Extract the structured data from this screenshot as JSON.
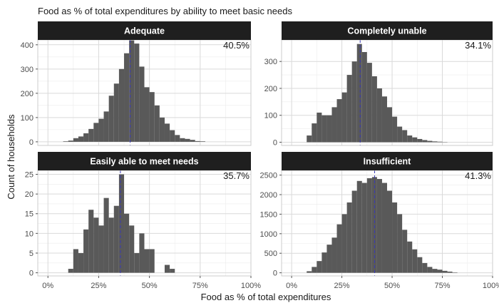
{
  "chart_data": {
    "type": "histogram",
    "title": "Food as % of total expenditures by ability to meet basic needs",
    "xlabel": "Food as % of total expenditures",
    "ylabel": "Count of households",
    "x_ticks": [
      "0%",
      "25%",
      "50%",
      "75%",
      "100%"
    ],
    "x_tick_values": [
      0,
      25,
      50,
      75,
      100
    ],
    "xlim": [
      -5,
      100
    ],
    "bin_width": 2.5,
    "bin_start": 5,
    "grid": true,
    "colors": {
      "bar": "#595959",
      "mean_line": "#3a3ab5",
      "strip": "#1f1f1f",
      "strip_text": "#ffffff",
      "grid": "#d9d9d9"
    },
    "panels": [
      {
        "label": "Adequate",
        "mean": 40.5,
        "mean_label": "40.5%",
        "ylim": [
          -15,
          420
        ],
        "y_ticks": [
          "0",
          "100",
          "200",
          "300",
          "400"
        ],
        "y_tick_values": [
          0,
          100,
          200,
          300,
          400
        ],
        "values": [
          0,
          2,
          5,
          15,
          22,
          35,
          53,
          78,
          95,
          125,
          190,
          240,
          300,
          365,
          418,
          405,
          310,
          225,
          205,
          150,
          100,
          75,
          48,
          28,
          15,
          12,
          8,
          3,
          2,
          0,
          0,
          0,
          0,
          0
        ]
      },
      {
        "label": "Completely unable",
        "mean": 34.1,
        "mean_label": "34.1%",
        "ylim": [
          -12,
          380
        ],
        "y_ticks": [
          "0",
          "100",
          "200",
          "300"
        ],
        "y_tick_values": [
          0,
          100,
          200,
          300
        ],
        "values": [
          0,
          25,
          70,
          110,
          100,
          100,
          130,
          160,
          185,
          250,
          300,
          365,
          335,
          295,
          245,
          200,
          170,
          130,
          95,
          58,
          45,
          25,
          18,
          12,
          8,
          5,
          3,
          2,
          1,
          0,
          0,
          0,
          0,
          0
        ]
      },
      {
        "label": "Easily able to meet needs",
        "mean": 35.7,
        "mean_label": "35.7%",
        "ylim": [
          -0.8,
          26
        ],
        "y_ticks": [
          "0",
          "5",
          "10",
          "15",
          "20",
          "25"
        ],
        "y_tick_values": [
          0,
          5,
          10,
          15,
          20,
          25
        ],
        "values": [
          0,
          0,
          1,
          6,
          5,
          11,
          16,
          14,
          12,
          19,
          14,
          17,
          25,
          15,
          12,
          5,
          10,
          6,
          6,
          0,
          0,
          2,
          1,
          0,
          0,
          0,
          0,
          0,
          0,
          0,
          0,
          0,
          0,
          0
        ]
      },
      {
        "label": "Insufficient",
        "mean": 41.3,
        "mean_label": "41.3%",
        "ylim": [
          -80,
          2620
        ],
        "y_ticks": [
          "0",
          "500",
          "1000",
          "1500",
          "2000",
          "2500"
        ],
        "y_tick_values": [
          0,
          500,
          1000,
          1500,
          2000,
          2500
        ],
        "values": [
          0,
          40,
          150,
          300,
          520,
          720,
          900,
          1240,
          1500,
          1800,
          2100,
          2350,
          2300,
          2420,
          2450,
          2400,
          2300,
          2100,
          1800,
          1500,
          1100,
          800,
          600,
          400,
          250,
          150,
          100,
          80,
          50,
          30,
          10,
          0,
          0,
          0
        ]
      }
    ]
  }
}
